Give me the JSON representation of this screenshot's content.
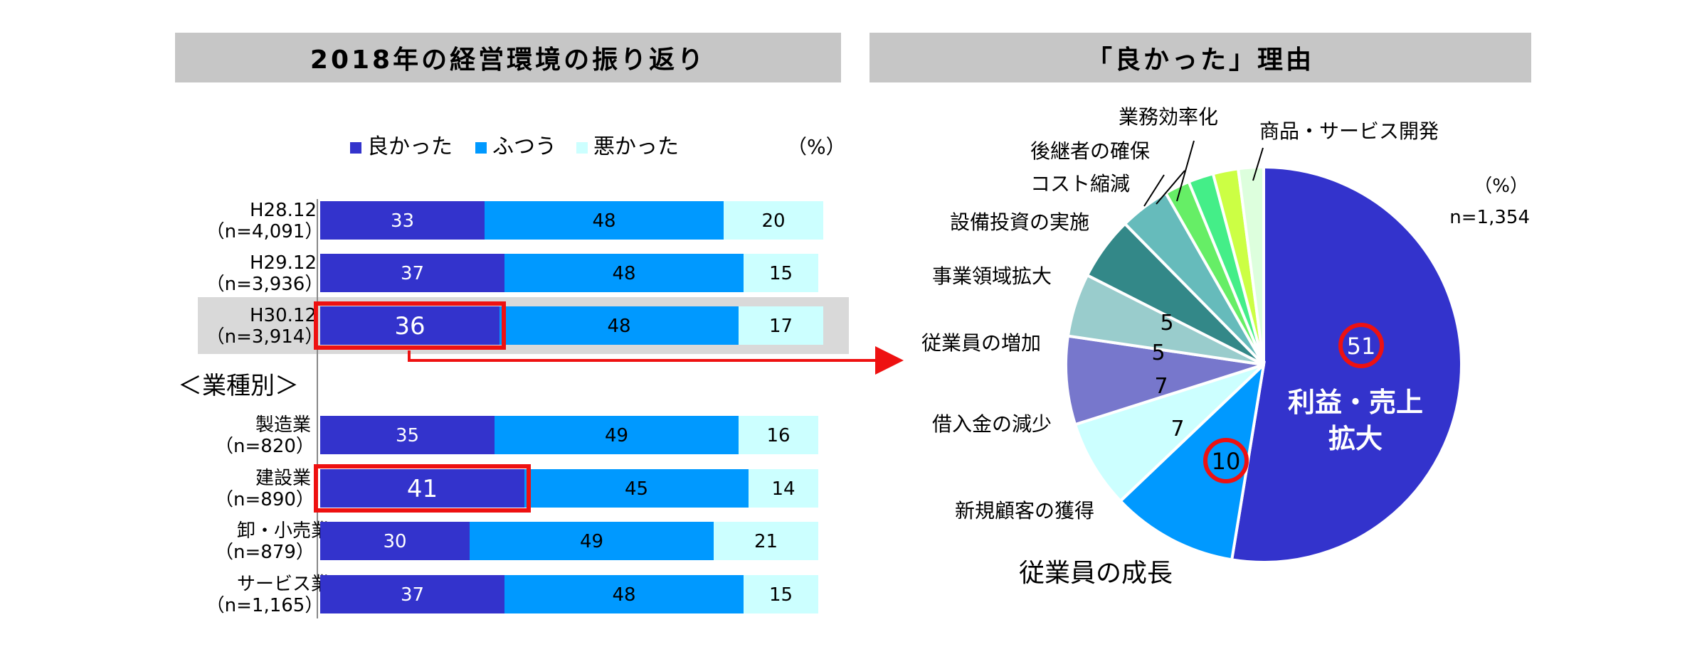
{
  "left_panel": {
    "title": "2018年の経営環境の振り返り",
    "unit": "（%）",
    "group_label": "＜業種別＞"
  },
  "right_panel": {
    "title": "「良かった」理由",
    "unit": "（%）",
    "n_label": "n=1,354"
  },
  "colors": {
    "good": "#3333cc",
    "normal": "#0099ff",
    "bad": "#ccffff",
    "highlight": "#ee1111",
    "header_bg": "#c6c6c6",
    "row_highlight": "#d9d9d9"
  },
  "chart_data": [
    {
      "type": "bar",
      "orientation": "horizontal",
      "stacked": true,
      "legend_position": "top",
      "categories": [
        {
          "line1": "H28.12",
          "line2": "（n=4,091）"
        },
        {
          "line1": "H29.12",
          "line2": "（n=3,936）"
        },
        {
          "line1": "H30.12",
          "line2": "（n=3,914）"
        },
        {
          "line1": "製造業",
          "line2": "（n=820）"
        },
        {
          "line1": "建設業",
          "line2": "（n=890）"
        },
        {
          "line1": "卸・小売業",
          "line2": "（n=879）"
        },
        {
          "line1": "サービス業",
          "line2": "（n=1,165）"
        }
      ],
      "series": [
        {
          "name": "良かった",
          "values": [
            33,
            37,
            36,
            35,
            41,
            30,
            37
          ]
        },
        {
          "name": "ふつう",
          "values": [
            48,
            48,
            48,
            49,
            45,
            49,
            48
          ]
        },
        {
          "name": "悪かった",
          "values": [
            20,
            15,
            17,
            16,
            14,
            21,
            15
          ]
        }
      ],
      "highlighted_rows": [
        2
      ],
      "highlighted_cells": [
        [
          2,
          0
        ],
        [
          4,
          0
        ]
      ]
    },
    {
      "type": "pie",
      "slices": [
        {
          "label": "利益・売上拡大",
          "value": 51,
          "color": "#3333cc"
        },
        {
          "label": "従業員の成長",
          "value": 10,
          "color": "#0099ff"
        },
        {
          "label": "新規顧客の獲得",
          "value": 7,
          "color": "#ccffff"
        },
        {
          "label": "借入金の減少",
          "value": 7,
          "color": "#7777cc"
        },
        {
          "label": "従業員の増加",
          "value": 5,
          "color": "#99cccc"
        },
        {
          "label": "事業領域拡大",
          "value": 5,
          "color": "#338888"
        },
        {
          "label": "設備投資の実施",
          "value": 4,
          "color": "#66bbbb"
        },
        {
          "label": "コスト縮減",
          "value": 2,
          "color": "#66ee66"
        },
        {
          "label": "後継者の確保",
          "value": 2,
          "color": "#44ee88"
        },
        {
          "label": "業務効率化",
          "value": 2,
          "color": "#ccff44"
        },
        {
          "label": "商品・サービス開発",
          "value": 2,
          "color": "#ddffdd"
        }
      ],
      "value_labels_shown": [
        51,
        10,
        7,
        7,
        5,
        5
      ],
      "circled": [
        0,
        1
      ]
    }
  ]
}
